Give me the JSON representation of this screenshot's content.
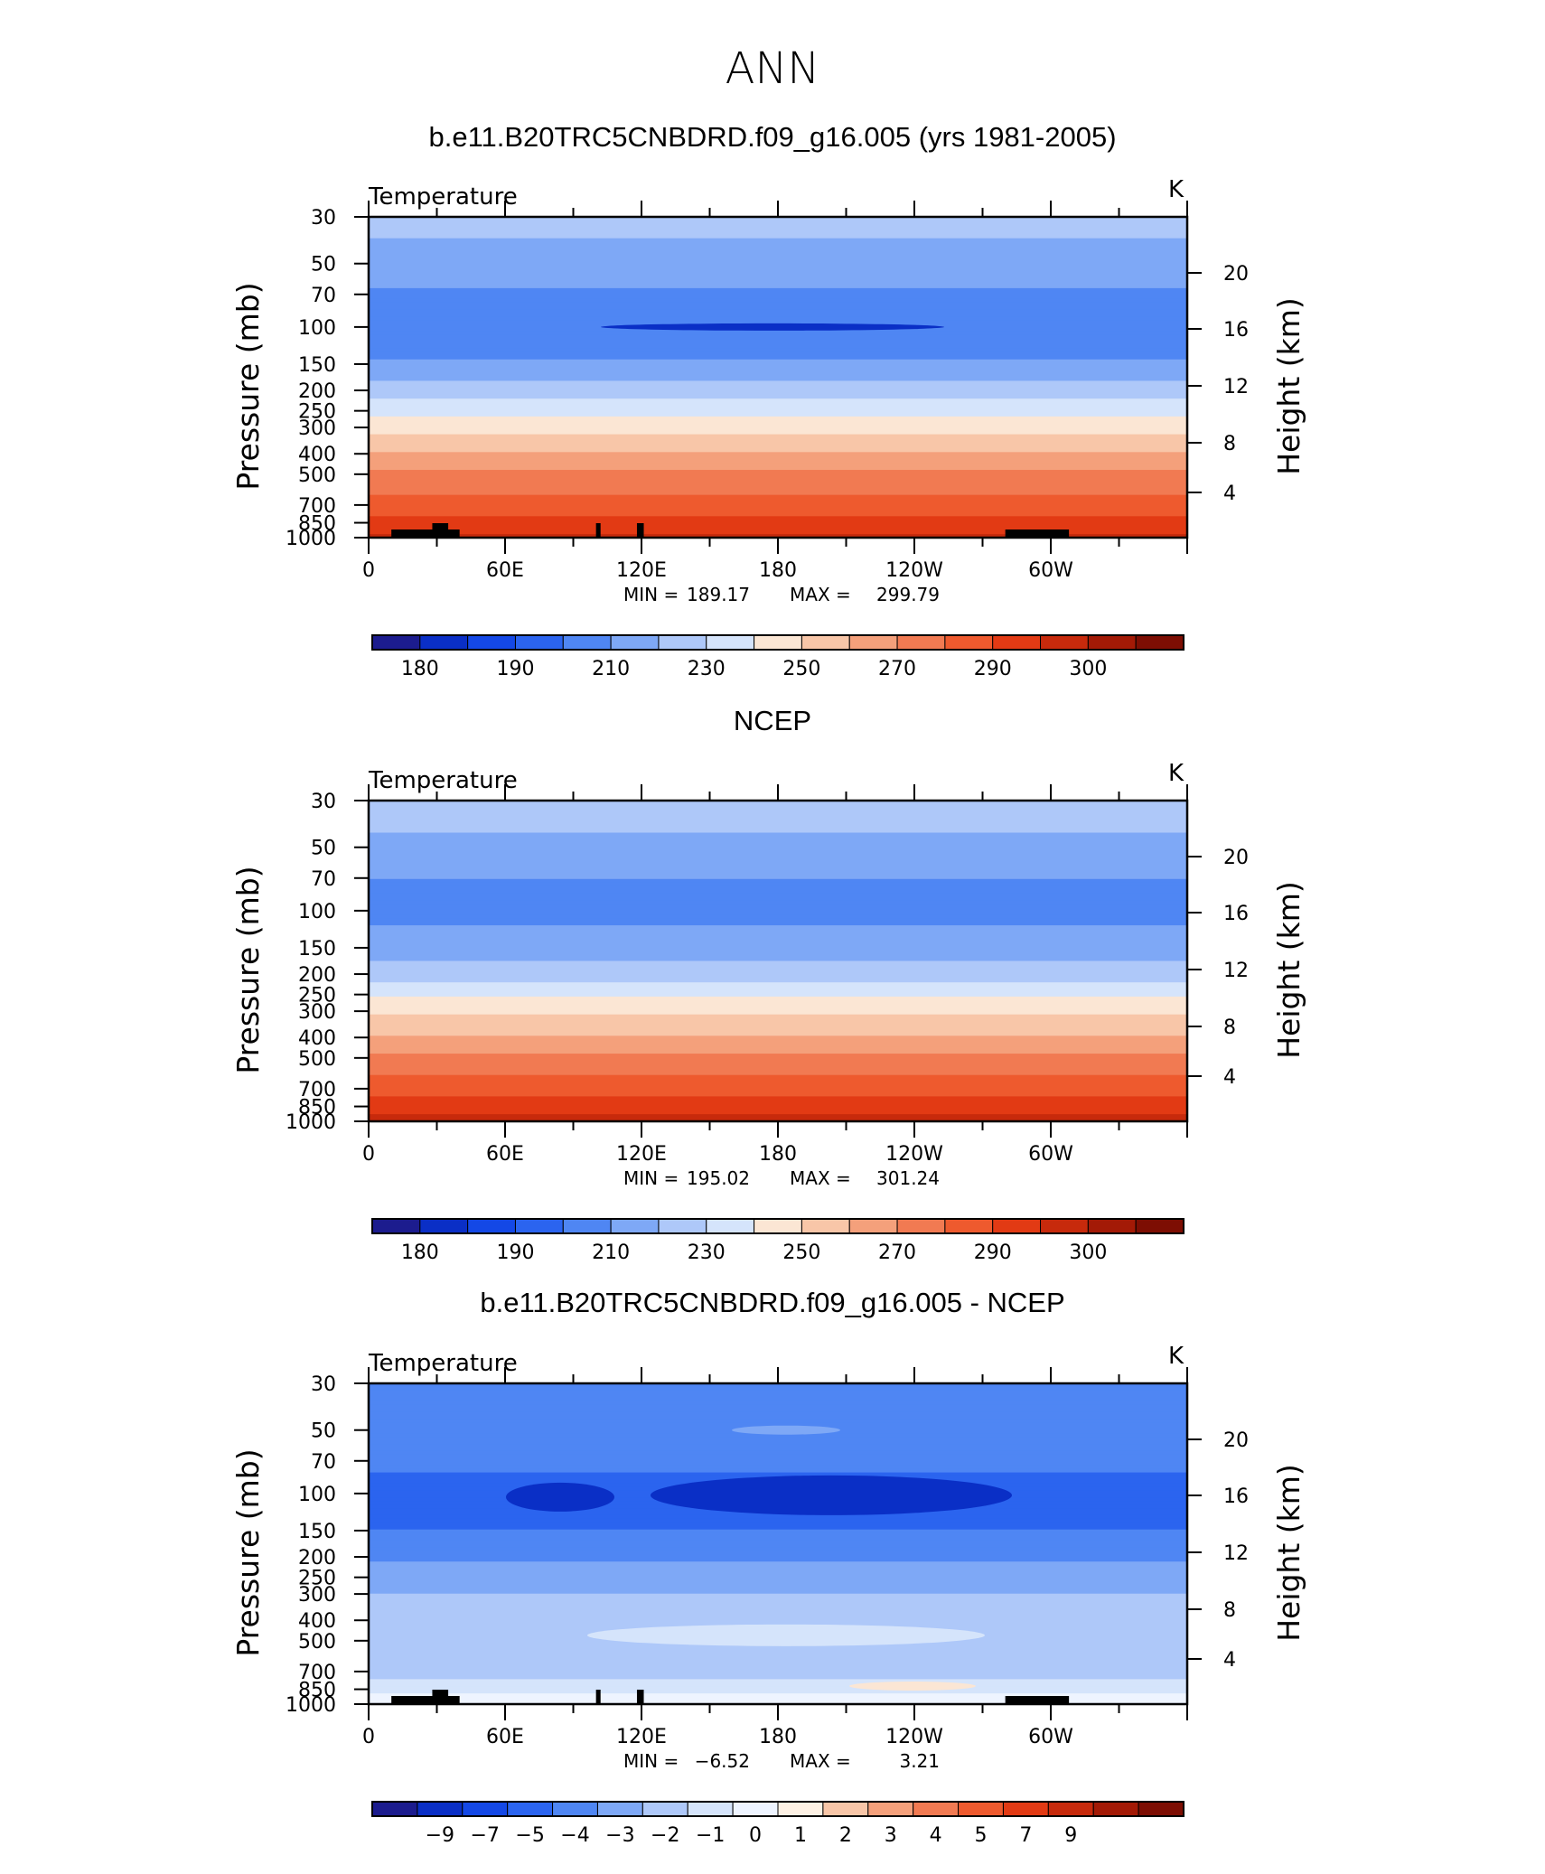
{
  "figure": {
    "main_title": "ANN"
  },
  "palettes": {
    "temp": [
      "#1c1c8e",
      "#0a2fc6",
      "#1448e6",
      "#2b64ef",
      "#4f86f3",
      "#7ea8f6",
      "#aec8f9",
      "#d5e4fb",
      "#fbe6d4",
      "#f8c6a8",
      "#f4a07b",
      "#f17a52",
      "#ee5a2e",
      "#e23a14",
      "#c72a0c",
      "#a31a06",
      "#7d0e03"
    ],
    "diff": [
      "#1c1c8e",
      "#0a2fc6",
      "#1448e6",
      "#2b64ef",
      "#4f86f3",
      "#7ea8f6",
      "#aec8f9",
      "#d5e4fb",
      "#eef4ff",
      "#fdf1e4",
      "#f8c6a8",
      "#f4a07b",
      "#f17a52",
      "#ee5a2e",
      "#e23a14",
      "#c72a0c",
      "#a31a06",
      "#7d0e03"
    ]
  },
  "chart_data": [
    {
      "type": "heatmap",
      "title": "b.e11.B20TRC5CNBDRD.f09_g16.005 (yrs 1981-2005)",
      "variable": "Temperature",
      "units": "K",
      "ylabel": "Pressure (mb)",
      "ylabel_right": "Height (km)",
      "x_ticks": [
        "0",
        "60E",
        "120E",
        "180",
        "120W",
        "60W"
      ],
      "y_ticks": [
        "30",
        "50",
        "70",
        "100",
        "150",
        "200",
        "250",
        "300",
        "400",
        "500",
        "700",
        "850",
        "1000"
      ],
      "y_ticks_right": [
        "20",
        "16",
        "12",
        "8",
        "4"
      ],
      "stats": {
        "min_label": "MIN =",
        "min": "189.17",
        "max_label": "MAX =",
        "max": "299.79"
      },
      "colorbar_labels": [
        "180",
        "190",
        "210",
        "230",
        "250",
        "270",
        "290",
        "300"
      ],
      "palette": "temp",
      "field": {
        "pressure": [
          30,
          50,
          70,
          100,
          150,
          200,
          250,
          300,
          400,
          500,
          700,
          850,
          1000
        ],
        "values": [
          213,
          206,
          198,
          193,
          201,
          215,
          226,
          236,
          250,
          262,
          275,
          283,
          291
        ],
        "mid_lon_dip": 3
      },
      "land_segments_lon": [
        [
          10,
          40
        ],
        [
          28,
          35
        ],
        [
          100,
          102
        ],
        [
          118,
          121
        ],
        [
          280,
          308
        ]
      ]
    },
    {
      "type": "heatmap",
      "title": "NCEP",
      "variable": "Temperature",
      "units": "K",
      "ylabel": "Pressure (mb)",
      "ylabel_right": "Height (km)",
      "x_ticks": [
        "0",
        "60E",
        "120E",
        "180",
        "120W",
        "60W"
      ],
      "y_ticks": [
        "30",
        "50",
        "70",
        "100",
        "150",
        "200",
        "250",
        "300",
        "400",
        "500",
        "700",
        "850",
        "1000"
      ],
      "y_ticks_right": [
        "20",
        "16",
        "12",
        "8",
        "4"
      ],
      "stats": {
        "min_label": "MIN =",
        "min": "195.02",
        "max_label": "MAX =",
        "max": "301.24"
      },
      "colorbar_labels": [
        "180",
        "190",
        "210",
        "230",
        "250",
        "270",
        "290",
        "300"
      ],
      "palette": "temp",
      "field": {
        "pressure": [
          30,
          50,
          70,
          100,
          150,
          200,
          250,
          300,
          400,
          500,
          700,
          850,
          1000
        ],
        "values": [
          215,
          208,
          200,
          198,
          203,
          216,
          228,
          238,
          251,
          263,
          276,
          285,
          293
        ],
        "mid_lon_dip": 1
      },
      "land_segments_lon": []
    },
    {
      "type": "heatmap",
      "title": "b.e11.B20TRC5CNBDRD.f09_g16.005 - NCEP",
      "variable": "Temperature",
      "units": "K",
      "ylabel": "Pressure (mb)",
      "ylabel_right": "Height (km)",
      "x_ticks": [
        "0",
        "60E",
        "120E",
        "180",
        "120W",
        "60W"
      ],
      "y_ticks": [
        "30",
        "50",
        "70",
        "100",
        "150",
        "200",
        "250",
        "300",
        "400",
        "500",
        "700",
        "850",
        "1000"
      ],
      "y_ticks_right": [
        "20",
        "16",
        "12",
        "8",
        "4"
      ],
      "stats": {
        "min_label": "MIN =",
        "min": "−6.52",
        "max_label": "MAX =",
        "max": "3.21"
      },
      "colorbar_labels": [
        "−9",
        "−7",
        "−5",
        "−4",
        "−3",
        "−2",
        "−1",
        "0",
        "1",
        "2",
        "3",
        "4",
        "5",
        "7",
        "9"
      ],
      "palette": "diff",
      "field": {
        "pressure": [
          30,
          50,
          70,
          100,
          150,
          200,
          250,
          300,
          400,
          500,
          700,
          850,
          1000
        ],
        "values": [
          -3.5,
          -3.0,
          -3.7,
          -4.6,
          -4.0,
          -3.2,
          -2.4,
          -2.0,
          -1.7,
          -1.5,
          -1.2,
          -0.6,
          -0.3
        ],
        "mid_lon_dip": 0
      },
      "land_segments_lon": [
        [
          10,
          40
        ],
        [
          28,
          35
        ],
        [
          100,
          102
        ],
        [
          118,
          121
        ],
        [
          280,
          308
        ]
      ]
    }
  ]
}
